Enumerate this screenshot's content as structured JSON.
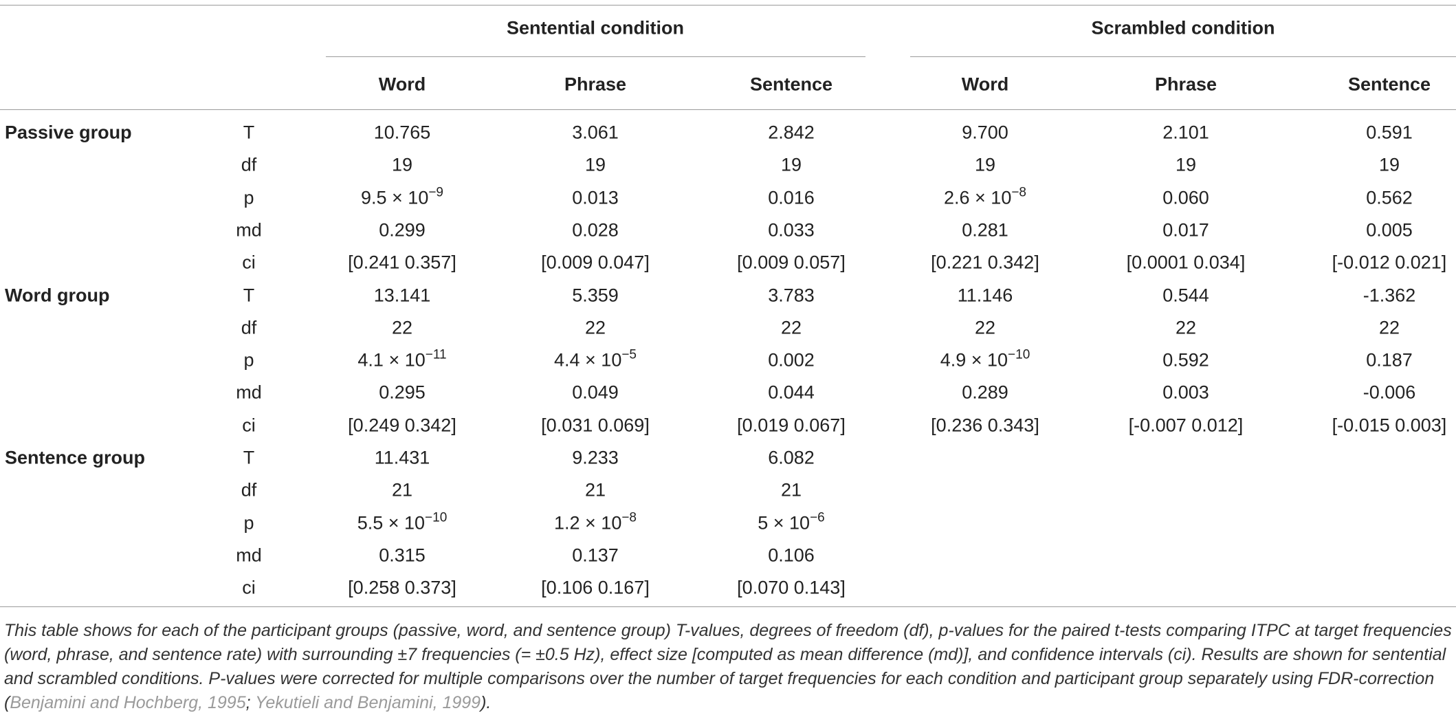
{
  "table": {
    "condition_headers": [
      "Sentential condition",
      "Scrambled condition"
    ],
    "column_headers": [
      "Word",
      "Phrase",
      "Sentence",
      "Word",
      "Phrase",
      "Sentence"
    ],
    "groups": [
      {
        "name": "Passive group",
        "rows": [
          {
            "stat": "T",
            "cells": [
              "10.765",
              "3.061",
              "2.842",
              "9.700",
              "2.101",
              "0.591"
            ]
          },
          {
            "stat": "df",
            "cells": [
              "19",
              "19",
              "19",
              "19",
              "19",
              "19"
            ]
          },
          {
            "stat": "p",
            "cells": [
              {
                "base": "9.5 × 10",
                "exp": "−9"
              },
              "0.013",
              "0.016",
              {
                "base": "2.6 × 10",
                "exp": "−8"
              },
              "0.060",
              "0.562"
            ]
          },
          {
            "stat": "md",
            "cells": [
              "0.299",
              "0.028",
              "0.033",
              "0.281",
              "0.017",
              "0.005"
            ]
          },
          {
            "stat": "ci",
            "cells": [
              "[0.241 0.357]",
              "[0.009 0.047]",
              "[0.009 0.057]",
              "[0.221 0.342]",
              "[0.0001 0.034]",
              "[-0.012 0.021]"
            ]
          }
        ]
      },
      {
        "name": "Word group",
        "rows": [
          {
            "stat": "T",
            "cells": [
              "13.141",
              "5.359",
              "3.783",
              "11.146",
              "0.544",
              "-1.362"
            ]
          },
          {
            "stat": "df",
            "cells": [
              "22",
              "22",
              "22",
              "22",
              "22",
              "22"
            ]
          },
          {
            "stat": "p",
            "cells": [
              {
                "base": "4.1 × 10",
                "exp": "−11"
              },
              {
                "base": "4.4 × 10",
                "exp": "−5"
              },
              "0.002",
              {
                "base": "4.9 × 10",
                "exp": "−10"
              },
              "0.592",
              "0.187"
            ]
          },
          {
            "stat": "md",
            "cells": [
              "0.295",
              "0.049",
              "0.044",
              "0.289",
              "0.003",
              "-0.006"
            ]
          },
          {
            "stat": "ci",
            "cells": [
              "[0.249 0.342]",
              "[0.031 0.069]",
              "[0.019 0.067]",
              "[0.236 0.343]",
              "[-0.007 0.012]",
              "[-0.015 0.003]"
            ]
          }
        ]
      },
      {
        "name": "Sentence group",
        "rows": [
          {
            "stat": "T",
            "cells": [
              "11.431",
              "9.233",
              "6.082"
            ]
          },
          {
            "stat": "df",
            "cells": [
              "21",
              "21",
              "21"
            ]
          },
          {
            "stat": "p",
            "cells": [
              {
                "base": "5.5 × 10",
                "exp": "−10"
              },
              {
                "base": "1.2 × 10",
                "exp": "−8"
              },
              {
                "base": "5 × 10",
                "exp": "−6"
              }
            ]
          },
          {
            "stat": "md",
            "cells": [
              "0.315",
              "0.137",
              "0.106"
            ]
          },
          {
            "stat": "ci",
            "cells": [
              "[0.258 0.373]",
              "[0.106 0.167]",
              "[0.070 0.143]"
            ]
          }
        ]
      }
    ]
  },
  "caption": {
    "before": "This table shows for each of the participant groups (passive, word, and sentence group) T-values, degrees of freedom (df), p-values for the paired t-tests comparing ITPC at target frequencies (word, phrase, and sentence rate) with surrounding ±7 frequencies (= ±0.5 Hz), effect size [computed as mean difference (md)], and confidence intervals (ci). Results are shown for sentential and scrambled conditions. P-values were corrected for multiple comparisons over the number of target frequencies for each condition and participant group separately using FDR-correction (",
    "citations": [
      "Benjamini and Hochberg, 1995",
      "Yekutieli and Benjamini, 1999"
    ],
    "separator": "; ",
    "after": ")."
  }
}
